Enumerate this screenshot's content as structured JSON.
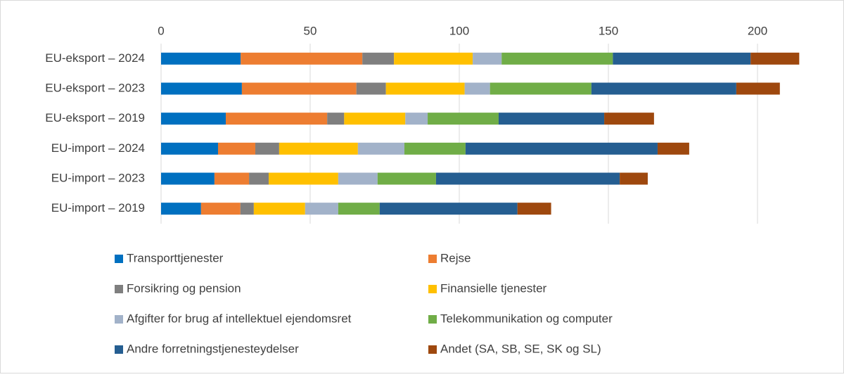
{
  "chart_data": {
    "type": "stacked-barh",
    "categories": [
      "EU-eksport – 2024",
      "EU-eksport – 2023",
      "EU-eksport – 2019",
      "EU-import – 2024",
      "EU-import – 2023",
      "EU-import – 2019"
    ],
    "series": [
      {
        "name": "Transporttjenester",
        "color": "#0070c0",
        "values": [
          26.7,
          27.1,
          21.7,
          19.1,
          17.9,
          13.4
        ]
      },
      {
        "name": "Rejse",
        "color": "#ed7d31",
        "values": [
          40.8,
          38.4,
          34.0,
          12.5,
          11.6,
          13.2
        ]
      },
      {
        "name": "Forsikring og pension",
        "color": "#7f7f7f",
        "values": [
          10.6,
          9.9,
          5.7,
          8.0,
          6.6,
          4.5
        ]
      },
      {
        "name": "Finansielle tjenester",
        "color": "#ffc000",
        "values": [
          26.4,
          26.4,
          20.5,
          26.4,
          23.3,
          17.2
        ]
      },
      {
        "name": "Afgifter for brug af intellektuel ejendomsret",
        "color": "#a2b2c9",
        "values": [
          9.7,
          8.5,
          7.5,
          15.6,
          13.2,
          11.1
        ]
      },
      {
        "name": "Telekommunikation og computer",
        "color": "#70ad47",
        "values": [
          37.3,
          34.0,
          23.8,
          20.5,
          19.6,
          13.9
        ]
      },
      {
        "name": "Andre forretningstjenesteydelser",
        "color": "#255e91",
        "values": [
          46.2,
          48.6,
          35.4,
          64.4,
          61.6,
          46.2
        ]
      },
      {
        "name": "Andet (SA, SB, SE, SK og SL)",
        "color": "#9e480e",
        "values": [
          16.3,
          14.6,
          16.7,
          10.6,
          9.4,
          11.3
        ]
      }
    ],
    "xlim": [
      0,
      220
    ],
    "xticks": [
      0,
      50,
      100,
      150,
      200
    ],
    "grid": true
  }
}
